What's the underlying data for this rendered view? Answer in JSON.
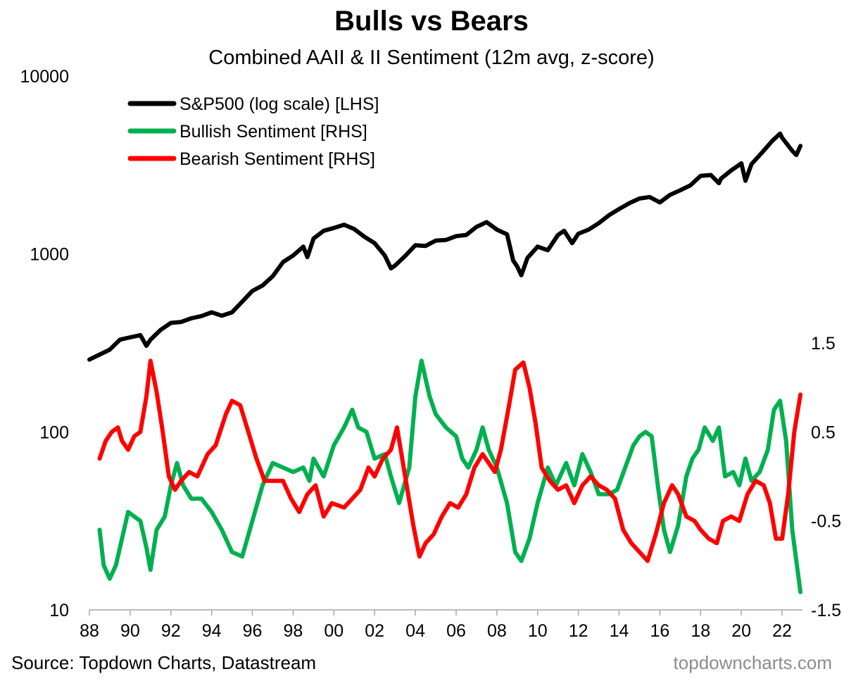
{
  "title": "Bulls vs Bears",
  "subtitle": "Combined AAII & II Sentiment (12m avg, z-score)",
  "source": "Source: Topdown Charts, Datastream",
  "watermark": "topdowncharts.com",
  "colors": {
    "sp500": "#000000",
    "bullish": "#00b050",
    "bearish": "#ff0000",
    "axis": "#a6a6a6",
    "watermark": "#8c8c8c"
  },
  "chart_data": {
    "type": "line",
    "title": "Bulls vs Bears",
    "subtitle": "Combined AAII & II Sentiment (12m avg, z-score)",
    "legend_position": "top-left",
    "grid": false,
    "x_range": [
      1988,
      2023
    ],
    "x_tick_labels": [
      "88",
      "90",
      "92",
      "94",
      "96",
      "98",
      "00",
      "02",
      "04",
      "06",
      "08",
      "10",
      "12",
      "14",
      "16",
      "18",
      "20",
      "22"
    ],
    "y_left": {
      "scale": "log",
      "range": [
        10,
        10000
      ],
      "tick_labels": [
        "10",
        "100",
        "1000",
        "10000"
      ]
    },
    "y_right": {
      "scale": "linear",
      "range": [
        -1.5,
        1.5
      ],
      "tick_labels": [
        "-1.5",
        "-0.5",
        "0.5",
        "1.5"
      ]
    },
    "series": [
      {
        "name": "S&P500 (log scale) [LHS]",
        "axis": "left",
        "color": "#000000",
        "points": [
          [
            1988.0,
            255
          ],
          [
            1988.5,
            272
          ],
          [
            1989.0,
            290
          ],
          [
            1989.5,
            330
          ],
          [
            1990.0,
            340
          ],
          [
            1990.5,
            350
          ],
          [
            1990.8,
            305
          ],
          [
            1991.0,
            330
          ],
          [
            1991.5,
            375
          ],
          [
            1992.0,
            410
          ],
          [
            1992.5,
            415
          ],
          [
            1993.0,
            435
          ],
          [
            1993.5,
            448
          ],
          [
            1994.0,
            470
          ],
          [
            1994.5,
            450
          ],
          [
            1995.0,
            470
          ],
          [
            1995.5,
            540
          ],
          [
            1996.0,
            620
          ],
          [
            1996.5,
            665
          ],
          [
            1997.0,
            750
          ],
          [
            1997.5,
            900
          ],
          [
            1998.0,
            980
          ],
          [
            1998.5,
            1100
          ],
          [
            1998.7,
            960
          ],
          [
            1999.0,
            1220
          ],
          [
            1999.5,
            1350
          ],
          [
            2000.0,
            1400
          ],
          [
            2000.5,
            1460
          ],
          [
            2001.0,
            1380
          ],
          [
            2001.5,
            1250
          ],
          [
            2002.0,
            1150
          ],
          [
            2002.5,
            980
          ],
          [
            2002.8,
            830
          ],
          [
            2003.0,
            860
          ],
          [
            2003.5,
            975
          ],
          [
            2004.0,
            1120
          ],
          [
            2004.5,
            1110
          ],
          [
            2005.0,
            1190
          ],
          [
            2005.5,
            1200
          ],
          [
            2006.0,
            1260
          ],
          [
            2006.5,
            1280
          ],
          [
            2007.0,
            1420
          ],
          [
            2007.5,
            1510
          ],
          [
            2008.0,
            1370
          ],
          [
            2008.5,
            1290
          ],
          [
            2008.8,
            920
          ],
          [
            2009.0,
            850
          ],
          [
            2009.2,
            760
          ],
          [
            2009.5,
            950
          ],
          [
            2010.0,
            1100
          ],
          [
            2010.5,
            1050
          ],
          [
            2011.0,
            1280
          ],
          [
            2011.3,
            1350
          ],
          [
            2011.7,
            1150
          ],
          [
            2012.0,
            1300
          ],
          [
            2012.5,
            1370
          ],
          [
            2013.0,
            1490
          ],
          [
            2013.5,
            1650
          ],
          [
            2014.0,
            1790
          ],
          [
            2014.5,
            1930
          ],
          [
            2015.0,
            2050
          ],
          [
            2015.5,
            2090
          ],
          [
            2016.0,
            1950
          ],
          [
            2016.5,
            2150
          ],
          [
            2017.0,
            2280
          ],
          [
            2017.5,
            2430
          ],
          [
            2018.0,
            2750
          ],
          [
            2018.5,
            2780
          ],
          [
            2018.9,
            2500
          ],
          [
            2019.0,
            2650
          ],
          [
            2019.5,
            2950
          ],
          [
            2020.0,
            3230
          ],
          [
            2020.2,
            2580
          ],
          [
            2020.5,
            3200
          ],
          [
            2021.0,
            3700
          ],
          [
            2021.5,
            4300
          ],
          [
            2021.9,
            4750
          ],
          [
            2022.0,
            4500
          ],
          [
            2022.5,
            3800
          ],
          [
            2022.7,
            3600
          ],
          [
            2022.9,
            4050
          ]
        ]
      },
      {
        "name": "Bullish Sentiment [RHS]",
        "axis": "right",
        "color": "#00b050",
        "points": [
          [
            1988.5,
            -0.6
          ],
          [
            1988.7,
            -1.0
          ],
          [
            1989.0,
            -1.15
          ],
          [
            1989.3,
            -1.0
          ],
          [
            1989.6,
            -0.7
          ],
          [
            1989.9,
            -0.4
          ],
          [
            1990.2,
            -0.45
          ],
          [
            1990.5,
            -0.5
          ],
          [
            1990.8,
            -0.8
          ],
          [
            1991.0,
            -1.05
          ],
          [
            1991.3,
            -0.6
          ],
          [
            1991.7,
            -0.45
          ],
          [
            1992.0,
            -0.1
          ],
          [
            1992.3,
            0.15
          ],
          [
            1992.6,
            -0.1
          ],
          [
            1993.0,
            -0.25
          ],
          [
            1993.5,
            -0.25
          ],
          [
            1994.0,
            -0.4
          ],
          [
            1994.5,
            -0.6
          ],
          [
            1995.0,
            -0.85
          ],
          [
            1995.5,
            -0.9
          ],
          [
            1996.0,
            -0.5
          ],
          [
            1996.5,
            -0.1
          ],
          [
            1997.0,
            0.15
          ],
          [
            1997.5,
            0.1
          ],
          [
            1998.0,
            0.05
          ],
          [
            1998.5,
            0.1
          ],
          [
            1998.8,
            -0.05
          ],
          [
            1999.0,
            0.2
          ],
          [
            1999.5,
            0.0
          ],
          [
            2000.0,
            0.35
          ],
          [
            2000.5,
            0.55
          ],
          [
            2000.9,
            0.75
          ],
          [
            2001.2,
            0.55
          ],
          [
            2001.6,
            0.5
          ],
          [
            2002.0,
            0.2
          ],
          [
            2002.5,
            0.25
          ],
          [
            2002.8,
            0.0
          ],
          [
            2003.2,
            -0.3
          ],
          [
            2003.7,
            0.1
          ],
          [
            2004.0,
            0.9
          ],
          [
            2004.3,
            1.3
          ],
          [
            2004.7,
            0.9
          ],
          [
            2005.0,
            0.7
          ],
          [
            2005.5,
            0.55
          ],
          [
            2006.0,
            0.45
          ],
          [
            2006.3,
            0.2
          ],
          [
            2006.6,
            0.1
          ],
          [
            2007.0,
            0.3
          ],
          [
            2007.3,
            0.55
          ],
          [
            2007.6,
            0.3
          ],
          [
            2008.0,
            0.1
          ],
          [
            2008.5,
            -0.3
          ],
          [
            2008.9,
            -0.85
          ],
          [
            2009.2,
            -0.95
          ],
          [
            2009.6,
            -0.7
          ],
          [
            2010.0,
            -0.3
          ],
          [
            2010.5,
            0.1
          ],
          [
            2010.9,
            -0.1
          ],
          [
            2011.4,
            0.15
          ],
          [
            2011.8,
            -0.1
          ],
          [
            2012.2,
            0.25
          ],
          [
            2012.6,
            0.05
          ],
          [
            2013.0,
            -0.2
          ],
          [
            2013.5,
            -0.2
          ],
          [
            2013.9,
            -0.15
          ],
          [
            2014.3,
            0.1
          ],
          [
            2014.7,
            0.35
          ],
          [
            2015.0,
            0.45
          ],
          [
            2015.3,
            0.5
          ],
          [
            2015.6,
            0.45
          ],
          [
            2015.9,
            -0.1
          ],
          [
            2016.2,
            -0.6
          ],
          [
            2016.5,
            -0.85
          ],
          [
            2016.9,
            -0.55
          ],
          [
            2017.3,
            0.0
          ],
          [
            2017.6,
            0.2
          ],
          [
            2017.9,
            0.3
          ],
          [
            2018.2,
            0.55
          ],
          [
            2018.6,
            0.4
          ],
          [
            2018.9,
            0.55
          ],
          [
            2019.2,
            0.0
          ],
          [
            2019.6,
            0.05
          ],
          [
            2019.9,
            -0.1
          ],
          [
            2020.2,
            0.2
          ],
          [
            2020.5,
            -0.05
          ],
          [
            2020.9,
            0.05
          ],
          [
            2021.3,
            0.3
          ],
          [
            2021.6,
            0.75
          ],
          [
            2021.9,
            0.85
          ],
          [
            2022.2,
            0.4
          ],
          [
            2022.5,
            -0.6
          ],
          [
            2022.9,
            -1.3
          ]
        ]
      },
      {
        "name": "Bearish Sentiment [RHS]",
        "axis": "right",
        "color": "#ff0000",
        "points": [
          [
            1988.5,
            0.2
          ],
          [
            1988.8,
            0.4
          ],
          [
            1989.1,
            0.5
          ],
          [
            1989.4,
            0.55
          ],
          [
            1989.6,
            0.4
          ],
          [
            1989.9,
            0.3
          ],
          [
            1990.2,
            0.45
          ],
          [
            1990.5,
            0.5
          ],
          [
            1990.8,
            0.9
          ],
          [
            1991.0,
            1.3
          ],
          [
            1991.3,
            0.95
          ],
          [
            1991.6,
            0.5
          ],
          [
            1991.9,
            0.0
          ],
          [
            1992.2,
            -0.15
          ],
          [
            1992.5,
            -0.05
          ],
          [
            1992.9,
            0.05
          ],
          [
            1993.3,
            0.0
          ],
          [
            1993.8,
            0.25
          ],
          [
            1994.2,
            0.35
          ],
          [
            1994.7,
            0.7
          ],
          [
            1995.0,
            0.85
          ],
          [
            1995.4,
            0.8
          ],
          [
            1995.8,
            0.5
          ],
          [
            1996.2,
            0.2
          ],
          [
            1996.6,
            -0.05
          ],
          [
            1997.0,
            -0.05
          ],
          [
            1997.5,
            -0.05
          ],
          [
            1997.9,
            -0.25
          ],
          [
            1998.3,
            -0.4
          ],
          [
            1998.7,
            -0.2
          ],
          [
            1999.1,
            -0.1
          ],
          [
            1999.5,
            -0.45
          ],
          [
            1999.9,
            -0.3
          ],
          [
            2000.5,
            -0.35
          ],
          [
            2000.9,
            -0.25
          ],
          [
            2001.3,
            -0.15
          ],
          [
            2001.7,
            0.1
          ],
          [
            2002.0,
            0.0
          ],
          [
            2002.4,
            0.2
          ],
          [
            2002.8,
            0.3
          ],
          [
            2003.1,
            0.55
          ],
          [
            2003.5,
            0.0
          ],
          [
            2003.9,
            -0.55
          ],
          [
            2004.2,
            -0.9
          ],
          [
            2004.5,
            -0.75
          ],
          [
            2004.9,
            -0.65
          ],
          [
            2005.3,
            -0.45
          ],
          [
            2005.7,
            -0.3
          ],
          [
            2006.1,
            -0.35
          ],
          [
            2006.5,
            -0.2
          ],
          [
            2006.9,
            0.1
          ],
          [
            2007.3,
            0.25
          ],
          [
            2007.6,
            0.15
          ],
          [
            2007.9,
            0.05
          ],
          [
            2008.2,
            0.3
          ],
          [
            2008.6,
            0.8
          ],
          [
            2008.9,
            1.2
          ],
          [
            2009.3,
            1.28
          ],
          [
            2009.6,
            1.0
          ],
          [
            2009.9,
            0.6
          ],
          [
            2010.2,
            0.1
          ],
          [
            2010.6,
            -0.05
          ],
          [
            2011.0,
            -0.15
          ],
          [
            2011.4,
            -0.1
          ],
          [
            2011.8,
            -0.3
          ],
          [
            2012.2,
            -0.1
          ],
          [
            2012.6,
            0.0
          ],
          [
            2013.0,
            -0.1
          ],
          [
            2013.4,
            -0.15
          ],
          [
            2013.8,
            -0.25
          ],
          [
            2014.2,
            -0.6
          ],
          [
            2014.6,
            -0.75
          ],
          [
            2015.0,
            -0.85
          ],
          [
            2015.4,
            -0.95
          ],
          [
            2015.8,
            -0.65
          ],
          [
            2016.2,
            -0.3
          ],
          [
            2016.6,
            -0.1
          ],
          [
            2016.9,
            -0.2
          ],
          [
            2017.3,
            -0.45
          ],
          [
            2017.7,
            -0.5
          ],
          [
            2018.0,
            -0.6
          ],
          [
            2018.4,
            -0.7
          ],
          [
            2018.8,
            -0.75
          ],
          [
            2019.1,
            -0.5
          ],
          [
            2019.5,
            -0.45
          ],
          [
            2019.9,
            -0.5
          ],
          [
            2020.3,
            -0.2
          ],
          [
            2020.7,
            -0.05
          ],
          [
            2021.1,
            -0.1
          ],
          [
            2021.4,
            -0.3
          ],
          [
            2021.7,
            -0.7
          ],
          [
            2022.0,
            -0.7
          ],
          [
            2022.3,
            -0.2
          ],
          [
            2022.6,
            0.5
          ],
          [
            2022.9,
            0.92
          ]
        ]
      }
    ]
  }
}
